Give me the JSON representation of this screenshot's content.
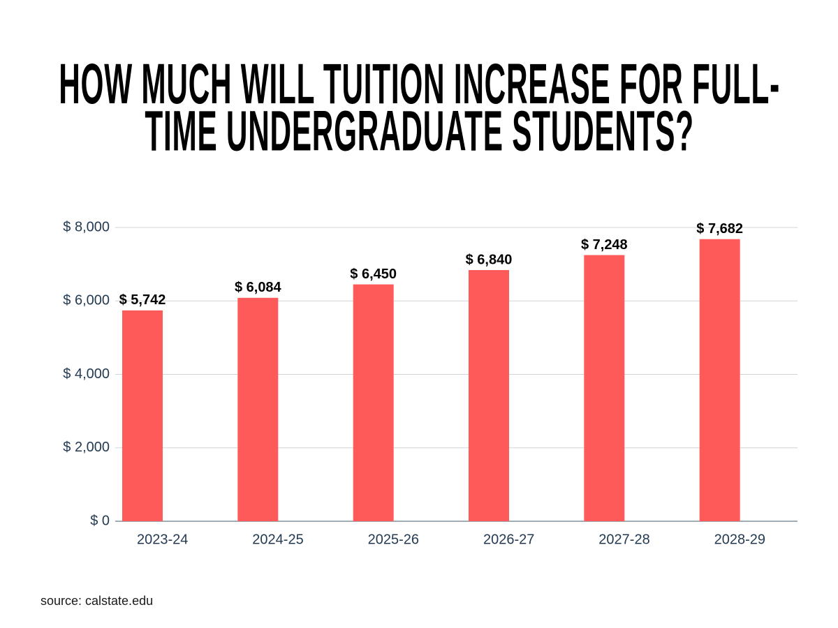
{
  "chart_data": {
    "type": "bar",
    "title": "HOW MUCH WILL TUITION INCREASE FOR FULL-TIME UNDERGRADUATE STUDENTS?",
    "categories": [
      "2023-24",
      "2024-25",
      "2025-26",
      "2026-27",
      "2027-28",
      "2028-29"
    ],
    "values": [
      5742,
      6084,
      6450,
      6840,
      7248,
      7682
    ],
    "value_labels": [
      "$ 5,742",
      "$ 6,084",
      "$ 6,450",
      "$ 6,840",
      "$ 7,248",
      "$ 7,682"
    ],
    "color": "#ff5a5a",
    "ylim": [
      0,
      8000
    ],
    "yticks": [
      {
        "value": 0,
        "label": "$ 0"
      },
      {
        "value": 2000,
        "label": "$ 2,000"
      },
      {
        "value": 4000,
        "label": "$ 4,000"
      },
      {
        "value": 6000,
        "label": "$ 6,000"
      },
      {
        "value": 8000,
        "label": "$ 8,000"
      }
    ],
    "grid": true,
    "source": "source: calstate.edu"
  }
}
